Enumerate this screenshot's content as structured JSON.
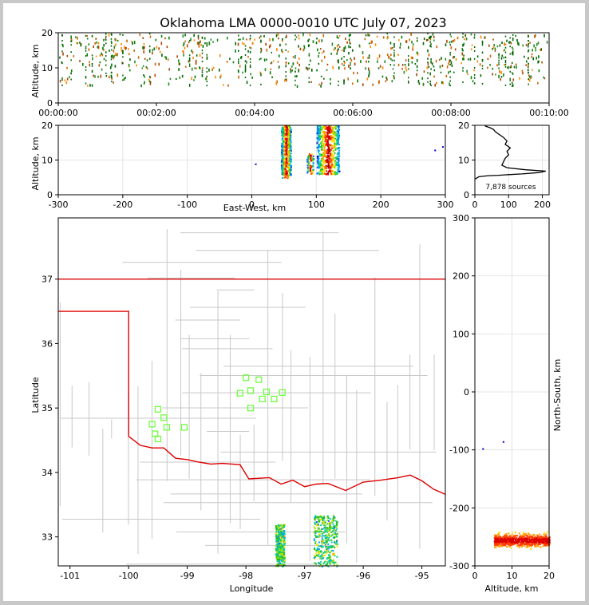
{
  "title": "Oklahoma LMA 0000-0010 UTC July 07, 2023",
  "chart_data": [
    {
      "type": "scatter",
      "panel": "time-altitude",
      "ylabel": "Altitude, km",
      "xlabel": "",
      "xlim": [
        "00:00:00",
        "00:10:00"
      ],
      "ylim": [
        0,
        20
      ],
      "x_ticks": [
        "00:00:00",
        "00:02:00",
        "00:04:00",
        "00:06:00",
        "00:08:00",
        "00:10:00"
      ],
      "y_ticks": [
        0,
        10,
        20
      ],
      "source_altitude_band_km": [
        5,
        20
      ],
      "colormap": "time"
    },
    {
      "type": "scatter",
      "panel": "east-west-altitude",
      "xlabel": "East-West, km",
      "ylabel": "Altitude, km",
      "xlim": [
        -300,
        300
      ],
      "ylim": [
        0,
        20
      ],
      "x_ticks": [
        -300,
        -200,
        -100,
        0,
        100,
        200,
        300
      ],
      "y_ticks": [
        0,
        10,
        20
      ],
      "clusters": [
        {
          "x_range_km": [
            45,
            60
          ],
          "alt_range_km": [
            5,
            20
          ]
        },
        {
          "x_range_km": [
            100,
            135
          ],
          "alt_range_km": [
            6,
            20
          ]
        },
        {
          "x_range_km": [
            85,
            95
          ],
          "alt_range_km": [
            6,
            12
          ]
        }
      ],
      "outliers": [
        {
          "x_km": 5,
          "alt_km": 9
        },
        {
          "x_km": 283,
          "alt_km": 13
        },
        {
          "x_km": 295,
          "alt_km": 14
        }
      ]
    },
    {
      "type": "line",
      "panel": "altitude-histogram",
      "xlim": [
        0,
        220
      ],
      "ylim": [
        0,
        20
      ],
      "x_ticks": [
        0,
        100,
        200
      ],
      "y_ticks": [
        0,
        10,
        20
      ],
      "annotation": "7,878 sources",
      "x": [
        0,
        12,
        40,
        70,
        100,
        140,
        190,
        210,
        150,
        95,
        80,
        85,
        90,
        100,
        95,
        105,
        90,
        95,
        85,
        70,
        60,
        55,
        45,
        30
      ],
      "y": [
        4.5,
        5.2,
        5.5,
        5.6,
        5.8,
        6.0,
        6.4,
        6.8,
        7.2,
        7.8,
        8.5,
        9.5,
        10.5,
        11.5,
        12.5,
        13.5,
        14.5,
        15.5,
        16.5,
        17.5,
        18.2,
        18.8,
        19.3,
        19.8
      ]
    },
    {
      "type": "scatter",
      "panel": "plan-view-map",
      "xlabel": "Longitude",
      "ylabel": "Latitude",
      "xlim": [
        -101.2,
        -94.6
      ],
      "ylim": [
        32.55,
        37.95
      ],
      "x_ticks": [
        -101,
        -100,
        -99,
        -98,
        -97,
        -96,
        -95
      ],
      "y_ticks": [
        33,
        34,
        35,
        36,
        37
      ],
      "stations": [
        {
          "lon": -99.6,
          "lat": 34.75
        },
        {
          "lon": -99.55,
          "lat": 34.6
        },
        {
          "lon": -99.5,
          "lat": 34.98
        },
        {
          "lon": -99.5,
          "lat": 34.52
        },
        {
          "lon": -99.4,
          "lat": 34.85
        },
        {
          "lon": -99.35,
          "lat": 34.7
        },
        {
          "lon": -99.05,
          "lat": 34.7
        },
        {
          "lon": -98.0,
          "lat": 35.47
        },
        {
          "lon": -98.1,
          "lat": 35.23
        },
        {
          "lon": -97.92,
          "lat": 35.27
        },
        {
          "lon": -97.92,
          "lat": 35.0
        },
        {
          "lon": -97.78,
          "lat": 35.44
        },
        {
          "lon": -97.72,
          "lat": 35.14
        },
        {
          "lon": -97.65,
          "lat": 35.25
        },
        {
          "lon": -97.52,
          "lat": 35.14
        },
        {
          "lon": -97.38,
          "lat": 35.24
        }
      ],
      "source_clusters": [
        {
          "lon_range": [
            -97.5,
            -97.35
          ],
          "lat_range": [
            32.55,
            33.2
          ]
        },
        {
          "lon_range": [
            -96.85,
            -96.45
          ],
          "lat_range": [
            32.55,
            33.35
          ]
        }
      ]
    },
    {
      "type": "scatter",
      "panel": "altitude-north-south",
      "xlabel": "Altitude, km",
      "ylabel": "North-South, km",
      "xlim": [
        0,
        20
      ],
      "ylim": [
        -300,
        300
      ],
      "x_ticks": [
        0,
        10,
        20
      ],
      "y_ticks": [
        -300,
        -200,
        -100,
        0,
        100,
        200,
        300
      ],
      "cluster": {
        "alt_range_km": [
          5,
          20
        ],
        "ns_range_km": [
          -300,
          -225
        ]
      },
      "outliers": [
        {
          "alt_km": 2,
          "ns_km": -97
        },
        {
          "alt_km": 7.5,
          "ns_km": -85
        }
      ]
    }
  ]
}
